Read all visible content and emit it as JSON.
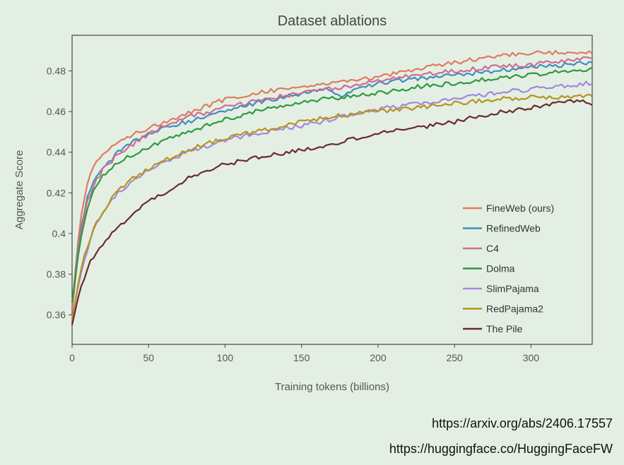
{
  "chart_data": {
    "type": "line",
    "title": "Dataset ablations",
    "xlabel": "Training tokens (billions)",
    "ylabel": "Aggregate Score",
    "xlim": [
      0,
      340
    ],
    "ylim": [
      0.3455,
      0.4975
    ],
    "xticks": [
      0,
      50,
      100,
      150,
      200,
      250,
      300
    ],
    "xtick_labels": [
      "0",
      "50",
      "100",
      "150",
      "200",
      "250",
      "300"
    ],
    "yticks": [
      0.36,
      0.38,
      0.4,
      0.42,
      0.44,
      0.46,
      0.48
    ],
    "ytick_labels": [
      "0.36",
      "0.38",
      "0.4",
      "0.42",
      "0.44",
      "0.46",
      "0.48"
    ],
    "grid": false,
    "legend_position": "bottom-right",
    "series": [
      {
        "name": "FineWeb (ours)",
        "color": "#e07b5e",
        "x": [
          0,
          5,
          10,
          15,
          20,
          30,
          40,
          50,
          60,
          75,
          100,
          125,
          150,
          175,
          200,
          225,
          250,
          275,
          300,
          325,
          340
        ],
        "y": [
          0.364,
          0.405,
          0.425,
          0.434,
          0.439,
          0.445,
          0.449,
          0.452,
          0.455,
          0.459,
          0.466,
          0.47,
          0.472,
          0.475,
          0.477,
          0.481,
          0.484,
          0.487,
          0.489,
          0.489,
          0.489
        ]
      },
      {
        "name": "RefinedWeb",
        "color": "#3f8ebc",
        "x": [
          0,
          5,
          10,
          15,
          20,
          30,
          40,
          50,
          60,
          75,
          100,
          125,
          150,
          165,
          175,
          180,
          200,
          225,
          250,
          275,
          300,
          325,
          340
        ],
        "y": [
          0.363,
          0.4,
          0.418,
          0.427,
          0.432,
          0.44,
          0.445,
          0.449,
          0.452,
          0.455,
          0.46,
          0.465,
          0.469,
          0.471,
          0.467,
          0.469,
          0.474,
          0.476,
          0.478,
          0.48,
          0.482,
          0.483,
          0.484
        ]
      },
      {
        "name": "C4",
        "color": "#d06b92",
        "x": [
          0,
          5,
          10,
          15,
          20,
          30,
          40,
          50,
          60,
          75,
          100,
          125,
          150,
          175,
          200,
          225,
          250,
          275,
          300,
          325,
          340
        ],
        "y": [
          0.362,
          0.398,
          0.416,
          0.425,
          0.431,
          0.439,
          0.444,
          0.449,
          0.453,
          0.457,
          0.462,
          0.466,
          0.469,
          0.472,
          0.475,
          0.478,
          0.48,
          0.482,
          0.483,
          0.485,
          0.487
        ]
      },
      {
        "name": "Dolma",
        "color": "#2d9a3c",
        "x": [
          0,
          5,
          10,
          15,
          20,
          30,
          40,
          50,
          60,
          75,
          100,
          125,
          150,
          175,
          200,
          225,
          250,
          275,
          300,
          325,
          340
        ],
        "y": [
          0.366,
          0.395,
          0.413,
          0.422,
          0.428,
          0.435,
          0.439,
          0.442,
          0.446,
          0.45,
          0.456,
          0.461,
          0.465,
          0.467,
          0.469,
          0.472,
          0.474,
          0.476,
          0.478,
          0.48,
          0.481
        ]
      },
      {
        "name": "SlimPajama",
        "color": "#a487dc",
        "x": [
          0,
          5,
          10,
          15,
          20,
          30,
          40,
          50,
          60,
          75,
          100,
          125,
          150,
          175,
          200,
          225,
          250,
          275,
          300,
          325,
          340
        ],
        "y": [
          0.358,
          0.378,
          0.392,
          0.403,
          0.41,
          0.42,
          0.426,
          0.431,
          0.435,
          0.44,
          0.446,
          0.45,
          0.453,
          0.457,
          0.461,
          0.464,
          0.466,
          0.469,
          0.471,
          0.473,
          0.474
        ]
      },
      {
        "name": "RedPajama2",
        "color": "#b4941f",
        "x": [
          0,
          5,
          10,
          15,
          20,
          30,
          40,
          50,
          60,
          75,
          100,
          125,
          150,
          175,
          200,
          225,
          250,
          275,
          300,
          325,
          340
        ],
        "y": [
          0.357,
          0.38,
          0.394,
          0.404,
          0.411,
          0.421,
          0.427,
          0.432,
          0.436,
          0.441,
          0.447,
          0.451,
          0.455,
          0.458,
          0.46,
          0.462,
          0.464,
          0.466,
          0.467,
          0.467,
          0.468
        ]
      },
      {
        "name": "The Pile",
        "color": "#6b2a2a",
        "x": [
          0,
          5,
          10,
          15,
          20,
          30,
          40,
          50,
          60,
          75,
          100,
          125,
          150,
          175,
          200,
          225,
          250,
          275,
          300,
          325,
          330,
          340
        ],
        "y": [
          0.355,
          0.372,
          0.383,
          0.39,
          0.395,
          0.403,
          0.41,
          0.416,
          0.42,
          0.427,
          0.434,
          0.438,
          0.441,
          0.445,
          0.449,
          0.452,
          0.455,
          0.459,
          0.462,
          0.465,
          0.466,
          0.464
        ]
      }
    ]
  },
  "footer": {
    "link1": "https://arxiv.org/abs/2406.17557",
    "link2": "https://huggingface.co/HuggingFaceFW"
  }
}
